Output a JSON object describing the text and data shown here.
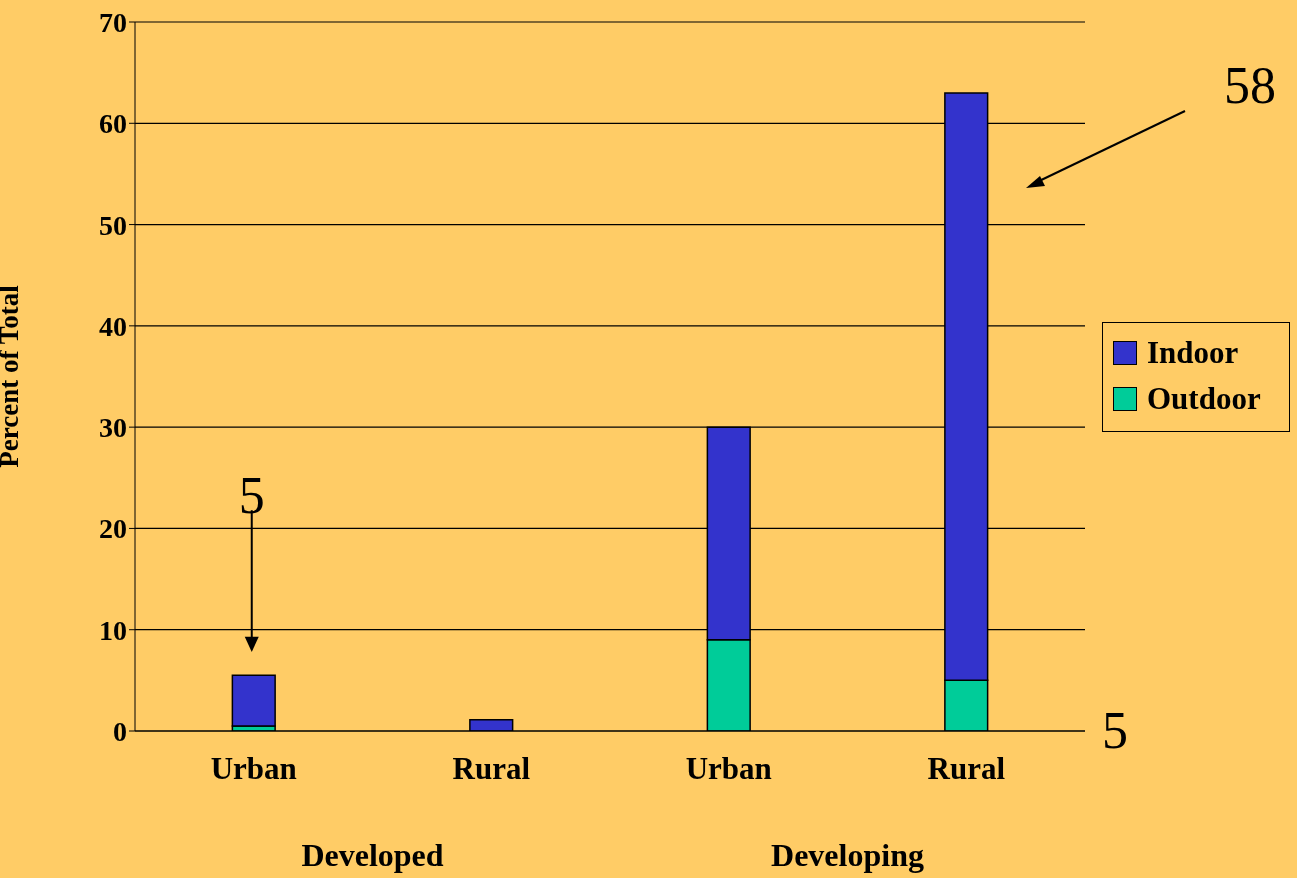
{
  "chart_data": {
    "type": "bar",
    "stacked": true,
    "ylabel": "Percent of Total",
    "categories": [
      "Urban",
      "Rural",
      "Urban",
      "Rural"
    ],
    "series": [
      {
        "name": "Outdoor",
        "color": "#00cc99",
        "values": [
          0.5,
          null,
          9,
          5
        ]
      },
      {
        "name": "Indoor",
        "color": "#3333cc",
        "values": [
          5,
          1.1,
          21,
          58
        ]
      }
    ],
    "ylim": [
      0,
      70
    ],
    "yticks": [
      0,
      10,
      20,
      30,
      40,
      50,
      60,
      70
    ],
    "grid": "y",
    "legend": "right",
    "annotations": [
      "5",
      "58",
      "5",
      "Developed",
      "Developing"
    ]
  }
}
